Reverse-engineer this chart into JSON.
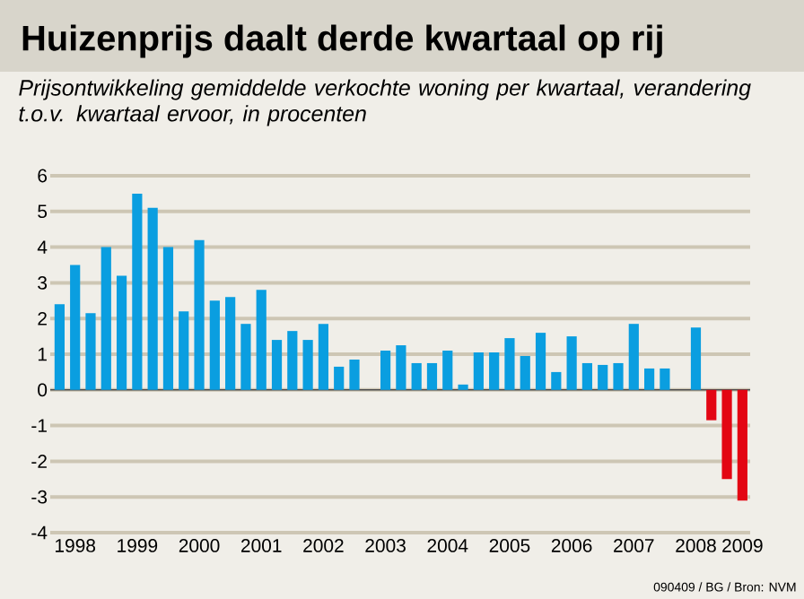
{
  "chart_data": {
    "type": "bar",
    "title": "Huizenprijs daalt derde kwartaal op rij",
    "subtitle": "Prijsontwikkeling gemiddelde verkochte woning per kwartaal, verandering t.o.v. kwartaal ervoor, in procenten",
    "annotations": [
      "090409 / BG / Bron: NVM"
    ],
    "categories": [
      null,
      "1998",
      null,
      null,
      null,
      "1999",
      null,
      null,
      null,
      "2000",
      null,
      null,
      null,
      "2001",
      null,
      null,
      null,
      "2002",
      null,
      null,
      null,
      "2003",
      null,
      null,
      null,
      "2004",
      null,
      null,
      null,
      "2005",
      null,
      null,
      null,
      "2006",
      null,
      null,
      null,
      "2007",
      null,
      null,
      null,
      "2008",
      null,
      null,
      "2009"
    ],
    "values": [
      2.4,
      3.5,
      2.15,
      4.0,
      3.2,
      5.5,
      5.1,
      4.0,
      2.2,
      4.2,
      2.5,
      2.6,
      1.85,
      2.8,
      1.4,
      1.65,
      1.4,
      1.85,
      0.65,
      0.85,
      0,
      1.1,
      1.25,
      0.75,
      0.75,
      1.1,
      0.15,
      1.05,
      1.05,
      1.45,
      0.95,
      1.6,
      0.5,
      1.5,
      0.75,
      0.7,
      0.75,
      1.85,
      0.6,
      0.6,
      0,
      1.75,
      -0.85,
      -2.5,
      -3.1
    ],
    "colors": [
      "#0a9ee0",
      "#0a9ee0",
      "#0a9ee0",
      "#0a9ee0",
      "#0a9ee0",
      "#0a9ee0",
      "#0a9ee0",
      "#0a9ee0",
      "#0a9ee0",
      "#0a9ee0",
      "#0a9ee0",
      "#0a9ee0",
      "#0a9ee0",
      "#0a9ee0",
      "#0a9ee0",
      "#0a9ee0",
      "#0a9ee0",
      "#0a9ee0",
      "#0a9ee0",
      "#0a9ee0",
      "#0a9ee0",
      "#0a9ee0",
      "#0a9ee0",
      "#0a9ee0",
      "#0a9ee0",
      "#0a9ee0",
      "#0a9ee0",
      "#0a9ee0",
      "#0a9ee0",
      "#0a9ee0",
      "#0a9ee0",
      "#0a9ee0",
      "#0a9ee0",
      "#0a9ee0",
      "#0a9ee0",
      "#0a9ee0",
      "#0a9ee0",
      "#0a9ee0",
      "#0a9ee0",
      "#0a9ee0",
      "#0a9ee0",
      "#0a9ee0",
      "#e30613",
      "#e30613",
      "#e30613"
    ],
    "ylim": [
      -4,
      6
    ],
    "yticks": [
      -4,
      -3,
      -2,
      -1,
      0,
      1,
      2,
      3,
      4,
      5,
      6
    ],
    "grid": "y"
  }
}
